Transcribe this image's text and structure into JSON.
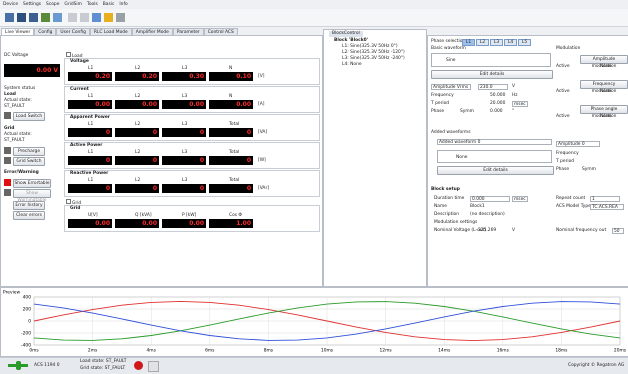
{
  "menu": [
    "Device",
    "Settings",
    "Scope",
    "GridSim",
    "Tools",
    "Basic",
    "Info"
  ],
  "tabs": [
    "Live Viewer",
    "Config",
    "User Config",
    "RLC Load Mode",
    "Amplifier Mode",
    "Parameter",
    "Control ACS"
  ],
  "status": {
    "dc_label": "DC Voltage",
    "dc_value": "0.00 V",
    "system_status": "System status",
    "load": "Load",
    "load_actual": "Actual state:",
    "load_state": "ST_FAULT",
    "load_switch": "Load Switch",
    "grid": "Grid",
    "grid_actual": "Actual state:",
    "grid_state": "ST_FAULT",
    "precharge": "Precharge",
    "grid_switch": "Grid Switch",
    "error_warning": "Error/Warning",
    "show_errors": "Show Errortable",
    "show_warnings": "Show Warningtable",
    "error_history": "Error history",
    "clear_errors": "Clear errors"
  },
  "measurements": {
    "load_check": "Load",
    "groups": [
      {
        "title": "Voltage",
        "headers": [
          "L1",
          "L2",
          "L3",
          "N"
        ],
        "values": [
          "0.20",
          "0.20",
          "0.30",
          "0.10"
        ],
        "unit": "[V]"
      },
      {
        "title": "Current",
        "headers": [
          "L1",
          "L2",
          "L3",
          "N"
        ],
        "values": [
          "0.00",
          "0.00",
          "0.00",
          "0.00"
        ],
        "unit": "[A]"
      },
      {
        "title": "Apparent Power",
        "headers": [
          "L1",
          "L2",
          "L3",
          "Total"
        ],
        "values": [
          "0",
          "0",
          "0",
          "0"
        ],
        "unit": "[VA]"
      },
      {
        "title": "Active Power",
        "headers": [
          "L1",
          "L2",
          "L3",
          "Total"
        ],
        "values": [
          "0",
          "0",
          "0",
          "0"
        ],
        "unit": "[W]"
      },
      {
        "title": "Reactive Power",
        "headers": [
          "L1",
          "L2",
          "L3",
          "Total"
        ],
        "values": [
          "0",
          "0",
          "0",
          "0"
        ],
        "unit": "[VAr]"
      }
    ],
    "grid_check": "Grid",
    "grid_group": {
      "title": "Grid",
      "headers": [
        "U[V]",
        "Q [kVA]",
        "P [kW]",
        "Cos Φ"
      ],
      "values": [
        "0.00",
        "0.00",
        "0.00",
        "1.00"
      ]
    }
  },
  "block_control": {
    "tab": "BlockControl",
    "tree": [
      "Block 'Block0'",
      "L1: Sine(325.3V 50Hz 0°)",
      "L2: Sine(325.3V 50Hz -120°)",
      "L3: Sine(325.3V 50Hz -240°)",
      "L4: None"
    ]
  },
  "editor": {
    "phase_selection": "Phase selection:",
    "phases": [
      "L1",
      "L2",
      "L3",
      "L4",
      "L5"
    ],
    "basic_waveform": "Basic waveform",
    "waveform": "Sine",
    "edit_details": "Edit details",
    "amplitude_mode": "Amplitude Vrms",
    "amplitude": "230.0",
    "amplitude_unit": "V",
    "frequency_label": "Frequency",
    "frequency": "50.000",
    "frequency_unit": "Hz",
    "period_label": "T period",
    "period": "20.000",
    "period_unit": "msec",
    "phase_label": "Phase",
    "symm": "Symm",
    "phase": "0.000",
    "phase_unit": "°",
    "added_waveforms": "Added waveforms",
    "added_select": "Added waveform 0",
    "added_waveform": "None",
    "added_edit": "Edit details",
    "modulation": "Modulation",
    "amp_mod": "Amplitude modulation",
    "freq_mod": "Frequency modulation",
    "phase_mod": "Phase angle modulation",
    "active": "Active",
    "none": "None",
    "added_amp_mode": "Amplitude 0",
    "added_freq": "Frequency",
    "added_period": "T period",
    "added_phase": "Phase",
    "added_symm": "Symm"
  },
  "block_setup": {
    "title": "Block setup",
    "duration_label": "Duration time",
    "duration": "0.000",
    "duration_unit": "msec",
    "repeat_label": "Repeat count",
    "repeat": "1",
    "name_label": "Name",
    "name": "Block1",
    "model_label": "ACS Model Type",
    "model": "TC.ACS.REA",
    "description_label": "Description",
    "description": "(no description)",
    "modulation_settings": "Modulation settings",
    "nominal_voltage_label": "Nominal Voltage (L-out)",
    "nominal_voltage": "325.269",
    "nominal_voltage_unit": "V",
    "nominal_freq_label": "Nominal frequency out",
    "nominal_freq": "50"
  },
  "preview": {
    "type": "line",
    "title": "Preview",
    "x": [
      0,
      1,
      2,
      3,
      4,
      5,
      6,
      7,
      8,
      9,
      10,
      11,
      12,
      13,
      14,
      15,
      16,
      17,
      18,
      19,
      20
    ],
    "xlim": [
      0,
      20
    ],
    "xticks": [
      {
        "value": 0,
        "label": "0ms"
      },
      {
        "value": 2,
        "label": "2ms"
      },
      {
        "value": 4,
        "label": "4ms"
      },
      {
        "value": 6,
        "label": "6ms"
      },
      {
        "value": 8,
        "label": "8ms"
      },
      {
        "value": 10,
        "label": "10ms"
      },
      {
        "value": 12,
        "label": "12ms"
      },
      {
        "value": 14,
        "label": "14ms"
      },
      {
        "value": 16,
        "label": "16ms"
      },
      {
        "value": 18,
        "label": "18ms"
      },
      {
        "value": 20,
        "label": "20ms"
      }
    ],
    "ylim": [
      -400,
      400
    ],
    "yticks": [
      -400,
      -200,
      0,
      200,
      400
    ],
    "grid": true,
    "series": [
      {
        "name": "L1",
        "color": "#e03030",
        "values": [
          0,
          100.5,
          191.3,
          263.2,
          309.4,
          325.3,
          309.4,
          263.2,
          191.3,
          100.5,
          0,
          -100.5,
          -191.3,
          -263.2,
          -309.4,
          -325.3,
          -309.4,
          -263.2,
          -191.3,
          -100.5,
          0
        ]
      },
      {
        "name": "L2",
        "color": "#2a9a2a",
        "values": [
          -281.7,
          -318.2,
          -323.5,
          -297.2,
          -241.7,
          -162.7,
          -67.6,
          34.0,
          132.3,
          217.7,
          281.7,
          318.2,
          323.5,
          297.2,
          241.7,
          162.7,
          67.6,
          -34.0,
          -132.3,
          -217.7,
          -281.7
        ]
      },
      {
        "name": "L3",
        "color": "#3050d8",
        "values": [
          281.7,
          217.7,
          132.3,
          34.0,
          -67.6,
          -162.7,
          -241.7,
          -297.2,
          -323.5,
          -318.2,
          -281.7,
          -217.7,
          -132.3,
          -34.0,
          67.6,
          162.7,
          241.7,
          297.2,
          323.5,
          318.2,
          281.7
        ]
      }
    ]
  },
  "statusbar": {
    "acs": "ACS 1194 0",
    "load_state": "Load state: ST_FAULT",
    "grid_state": "Grid state: ST_FAULT",
    "copyright": "Copyright © Regatron AG"
  }
}
